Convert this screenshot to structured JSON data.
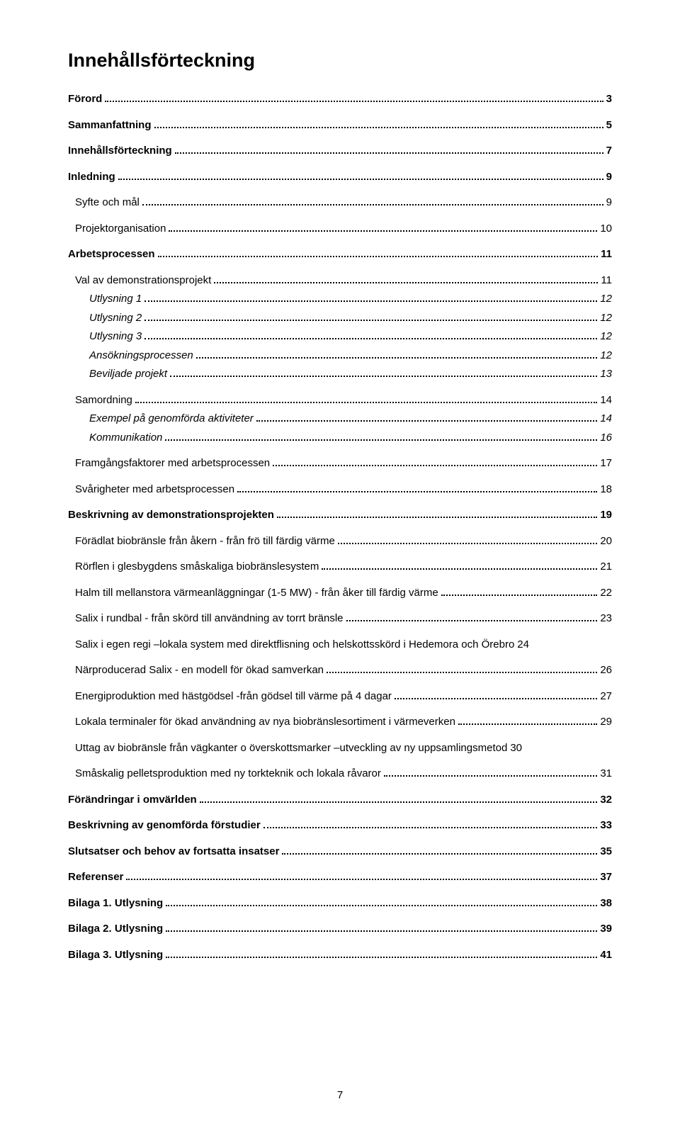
{
  "title": "Innehållsförteckning",
  "page_number": "7",
  "entries": [
    {
      "label": "Förord",
      "page": "3",
      "level": 1
    },
    {
      "label": "Sammanfattning",
      "page": "5",
      "level": 1
    },
    {
      "label": "Innehållsförteckning",
      "page": "7",
      "level": 1
    },
    {
      "label": "Inledning",
      "page": "9",
      "level": 1
    },
    {
      "label": "Syfte och mål",
      "page": "9",
      "level": 2
    },
    {
      "label": "Projektorganisation",
      "page": "10",
      "level": 2
    },
    {
      "label": "Arbetsprocessen",
      "page": "11",
      "level": 1
    },
    {
      "label": "Val av demonstrationsprojekt",
      "page": "11",
      "level": 2
    },
    {
      "label": "Utlysning 1",
      "page": "12",
      "level": 3
    },
    {
      "label": "Utlysning 2",
      "page": "12",
      "level": 3
    },
    {
      "label": "Utlysning 3",
      "page": "12",
      "level": 3
    },
    {
      "label": "Ansökningsprocessen",
      "page": "12",
      "level": 3
    },
    {
      "label": "Beviljade projekt",
      "page": "13",
      "level": 3
    },
    {
      "label": "Samordning",
      "page": "14",
      "level": 2
    },
    {
      "label": "Exempel på genomförda aktiviteter",
      "page": "14",
      "level": 3
    },
    {
      "label": "Kommunikation",
      "page": "16",
      "level": 3
    },
    {
      "label": "Framgångsfaktorer med arbetsprocessen",
      "page": "17",
      "level": 2
    },
    {
      "label": "Svårigheter med arbetsprocessen",
      "page": "18",
      "level": 2
    },
    {
      "label": "Beskrivning av demonstrationsprojekten",
      "page": "19",
      "level": 1
    },
    {
      "label": "Förädlat biobränsle från åkern - från frö till färdig värme",
      "page": "20",
      "level": 2
    },
    {
      "label": "Rörflen i glesbygdens småskaliga biobränslesystem",
      "page": "21",
      "level": 2
    },
    {
      "label": "Halm till mellanstora värmeanläggningar (1-5 MW) - från åker till färdig värme",
      "page": "22",
      "level": 2
    },
    {
      "label": "Salix i rundbal - från skörd till användning av torrt bränsle",
      "page": "23",
      "level": 2
    },
    {
      "label": "Salix i egen regi –lokala system med direktflisning och helskottsskörd i Hedemora och Örebro",
      "page": "24",
      "level": 2,
      "no_leader": true
    },
    {
      "label": "Närproducerad Salix - en modell för ökad samverkan",
      "page": "26",
      "level": 2
    },
    {
      "label": "Energiproduktion med hästgödsel -från gödsel till värme på 4 dagar",
      "page": "27",
      "level": 2
    },
    {
      "label": "Lokala terminaler för ökad användning av nya biobränslesortiment i värmeverken",
      "page": "29",
      "level": 2
    },
    {
      "label": "Uttag av biobränsle från vägkanter o överskottsmarker –utveckling av ny uppsamlingsmetod",
      "page": "30",
      "level": 2,
      "no_leader": true
    },
    {
      "label": "Småskalig pelletsproduktion med ny torkteknik och lokala råvaror",
      "page": "31",
      "level": 2
    },
    {
      "label": "Förändringar i omvärlden",
      "page": "32",
      "level": 1
    },
    {
      "label": "Beskrivning av genomförda förstudier",
      "page": "33",
      "level": 1
    },
    {
      "label": "Slutsatser och behov av fortsatta insatser",
      "page": "35",
      "level": 1
    },
    {
      "label": "Referenser",
      "page": "37",
      "level": 1
    },
    {
      "label": "Bilaga 1. Utlysning",
      "page": "38",
      "level": 1
    },
    {
      "label": "Bilaga 2. Utlysning",
      "page": "39",
      "level": 1
    },
    {
      "label": "Bilaga 3. Utlysning",
      "page": "41",
      "level": 1
    }
  ]
}
